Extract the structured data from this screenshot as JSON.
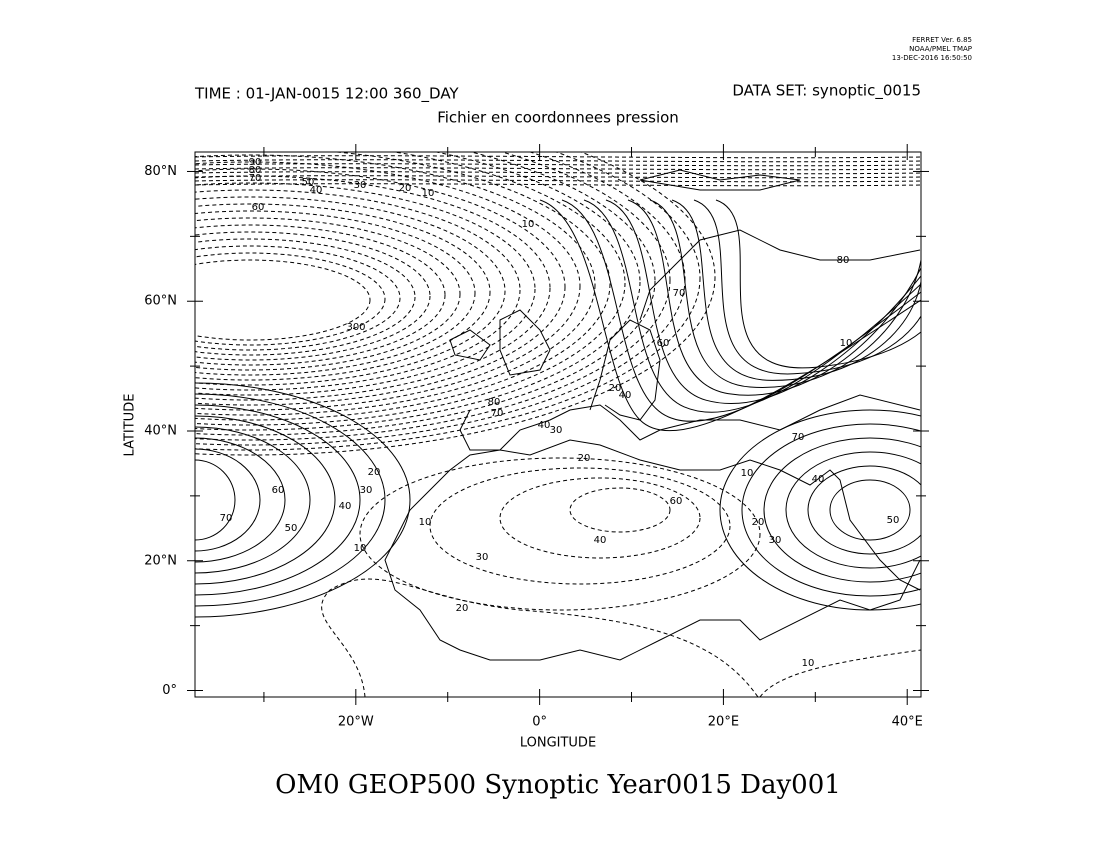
{
  "chart_data": {
    "type": "contour",
    "header": [
      "FERRET Ver. 6.85",
      "NOAA/PMEL TMAP",
      "13-DEC-2016 16:50:50"
    ],
    "time_label": "TIME : 01-JAN-0015 12:00 360_DAY",
    "dataset_label": "DATA SET: synoptic_0015",
    "subtitle": "Fichier en coordonnees pression",
    "title": "OM0 GEOP500 Synoptic Year0015 Day001",
    "xlabel": "LONGITUDE",
    "ylabel": "LATITUDE",
    "xlim": [
      -37.5,
      41.5
    ],
    "ylim": [
      -1,
      83
    ],
    "xticks": [
      {
        "value": -20,
        "label": "20°W"
      },
      {
        "value": 0,
        "label": "0°"
      },
      {
        "value": 20,
        "label": "20°E"
      },
      {
        "value": 40,
        "label": "40°E"
      }
    ],
    "xminorticks": [
      -30,
      -10,
      10,
      30
    ],
    "yticks": [
      {
        "value": 0,
        "label": "0°"
      },
      {
        "value": 20,
        "label": "20°N"
      },
      {
        "value": 40,
        "label": "40°N"
      },
      {
        "value": 60,
        "label": "60°N"
      },
      {
        "value": 80,
        "label": "80°N"
      }
    ],
    "yminorticks": [
      10,
      30,
      50,
      70
    ],
    "contour_labels": [
      90,
      80,
      70,
      50,
      40,
      30,
      20,
      10,
      60,
      10,
      300,
      80,
      70,
      40,
      30,
      20,
      60,
      40,
      30,
      20,
      10,
      70,
      60,
      50,
      40,
      30,
      20,
      10,
      10,
      10,
      80,
      70,
      20,
      40,
      60,
      10,
      70,
      40,
      20,
      30,
      50
    ]
  }
}
